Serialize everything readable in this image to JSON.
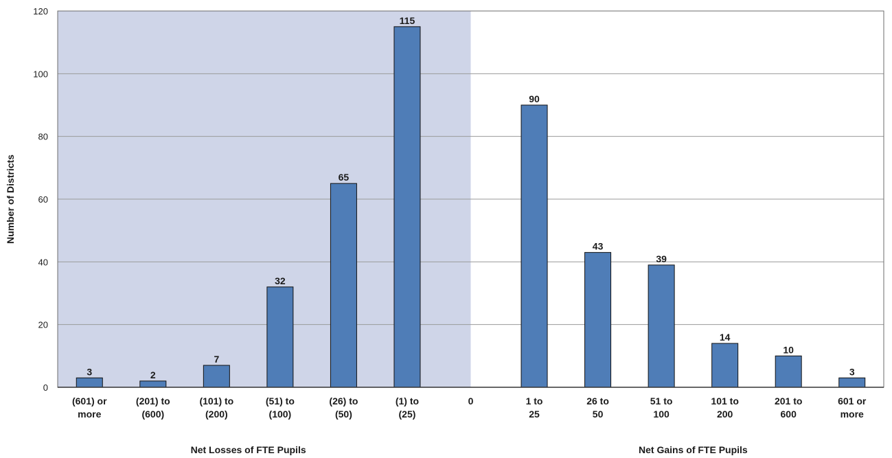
{
  "chart_data": {
    "type": "bar",
    "title": "",
    "ylabel": "Number of Districts",
    "ylim": [
      0,
      120
    ],
    "yticks": [
      0,
      20,
      40,
      60,
      80,
      100,
      120
    ],
    "grid": true,
    "shaded_region": {
      "from_category": 0,
      "to_category": 6,
      "color": "#cfd5e8"
    },
    "bar_color": "#4f7db7",
    "categories": [
      {
        "label": [
          "(601) or",
          "more"
        ],
        "value": 3
      },
      {
        "label": [
          "(201) to",
          "(600)"
        ],
        "value": 2
      },
      {
        "label": [
          "(101) to",
          "(200)"
        ],
        "value": 7
      },
      {
        "label": [
          "(51) to",
          "(100)"
        ],
        "value": 32
      },
      {
        "label": [
          "(26) to",
          "(50)"
        ],
        "value": 65
      },
      {
        "label": [
          "(1) to",
          "(25)"
        ],
        "value": 115
      },
      {
        "label": [
          "0"
        ],
        "value": null
      },
      {
        "label": [
          "1 to",
          "25"
        ],
        "value": 90
      },
      {
        "label": [
          "26 to",
          "50"
        ],
        "value": 43
      },
      {
        "label": [
          "51 to",
          "100"
        ],
        "value": 39
      },
      {
        "label": [
          "101 to",
          "200"
        ],
        "value": 14
      },
      {
        "label": [
          "201 to",
          "600"
        ],
        "value": 10
      },
      {
        "label": [
          "601 or",
          "more"
        ],
        "value": 3
      }
    ],
    "group_labels": [
      {
        "text": "Net Losses of FTE Pupils",
        "center_category": 2.5
      },
      {
        "text": "Net Gains of FTE Pupils",
        "center_category": 9.5
      }
    ]
  }
}
